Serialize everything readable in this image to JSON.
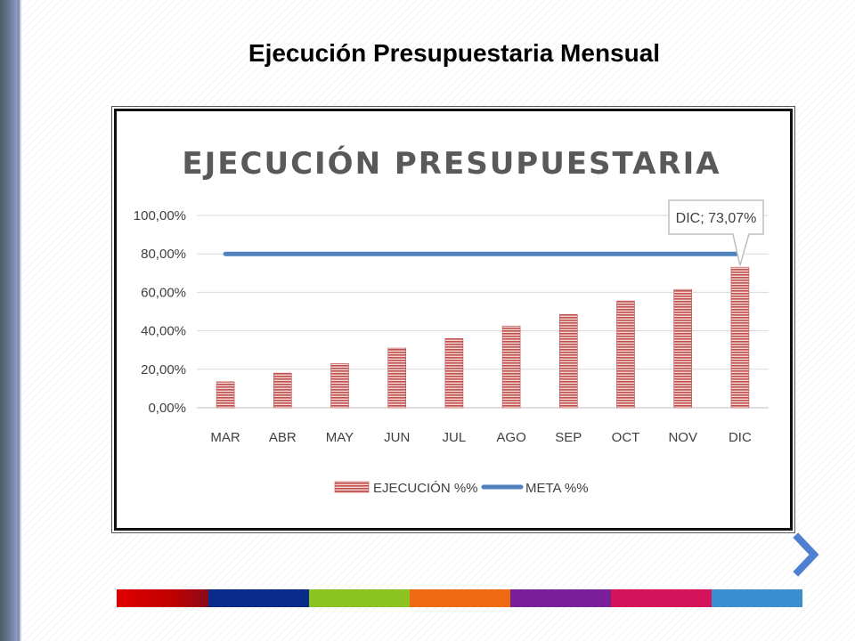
{
  "slide": {
    "title": "Ejecución Presupuestaria Mensual"
  },
  "colors": {
    "bar": "#c0504d",
    "line": "#4f81bd",
    "strip": [
      "#c00000",
      "#0a2b8c",
      "#8bc420",
      "#f06a14",
      "#7a1f9a",
      "#d4145a",
      "#3a8fd0"
    ]
  },
  "icons": {
    "next": "chevron-right-icon"
  },
  "chart_data": {
    "type": "bar",
    "title": "EJECUCIÓN PRESUPUESTARIA",
    "categories": [
      "MAR",
      "ABR",
      "MAY",
      "JUN",
      "JUL",
      "AGO",
      "SEP",
      "OCT",
      "NOV",
      "DIC"
    ],
    "series": [
      {
        "name": "EJECUCIÓN %%",
        "kind": "bar",
        "values": [
          13.5,
          18,
          23,
          31,
          36,
          42.5,
          48.5,
          55.5,
          61.5,
          73.07
        ]
      },
      {
        "name": "META %%",
        "kind": "line",
        "values": [
          80,
          80,
          80,
          80,
          80,
          80,
          80,
          80,
          80,
          80
        ]
      }
    ],
    "yticks": [
      "0,00%",
      "20,00%",
      "40,00%",
      "60,00%",
      "80,00%",
      "100,00%"
    ],
    "ylim": [
      0,
      100
    ],
    "grid": true,
    "legend": "bottom",
    "annotation": {
      "category": "DIC",
      "text": "DIC; 73,07%"
    }
  }
}
